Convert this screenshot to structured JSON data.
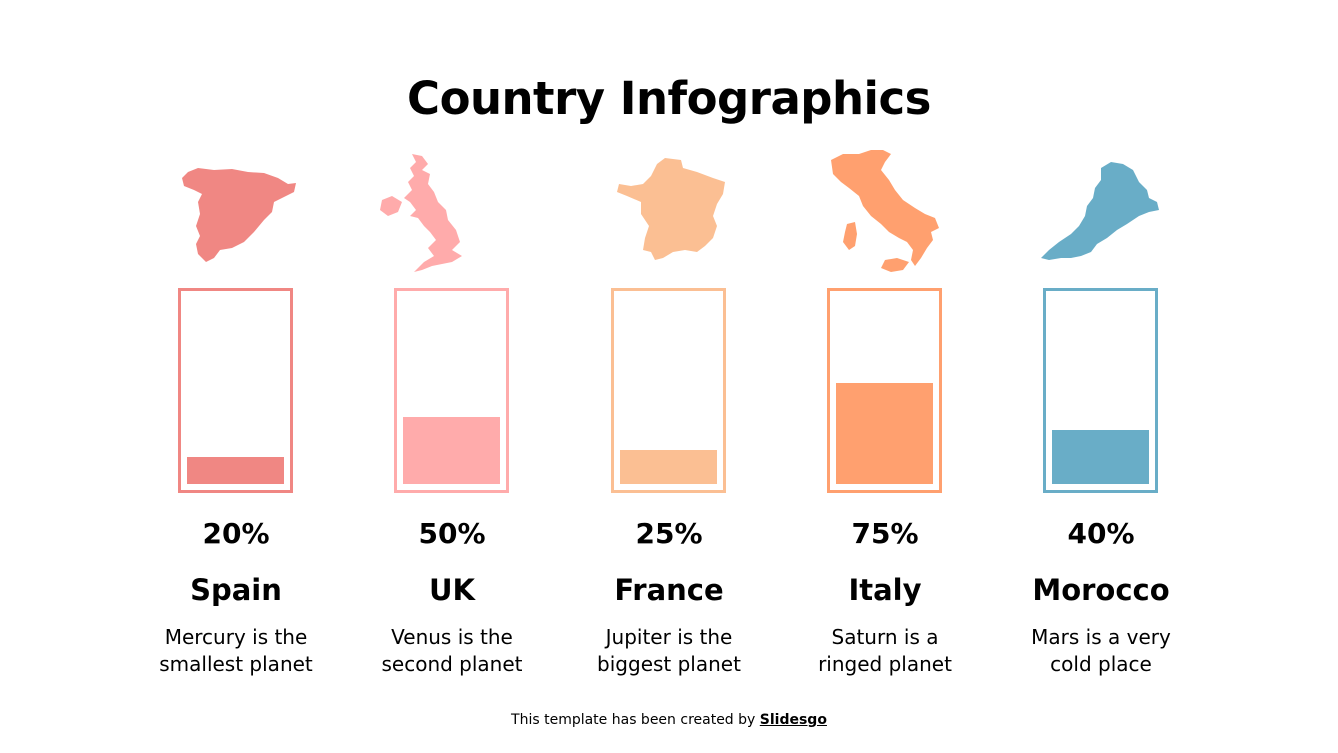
{
  "title": "Country Infographics",
  "footer": {
    "prefix": "This template has been created by ",
    "brand": "Slidesgo"
  },
  "colors": {
    "spain": "#f08783",
    "uk": "#ffabab",
    "france": "#fbbf93",
    "italy": "#ffa06f",
    "morocco": "#69adc7"
  },
  "chart_data": {
    "type": "bar",
    "title": "Country Infographics",
    "categories": [
      "Spain",
      "UK",
      "France",
      "Italy",
      "Morocco"
    ],
    "values": [
      20,
      50,
      25,
      75,
      40
    ],
    "value_labels": [
      "20%",
      "50%",
      "25%",
      "75%",
      "40%"
    ],
    "descriptions": [
      [
        "Mercury is the",
        "smallest planet"
      ],
      [
        "Venus is the",
        "second planet"
      ],
      [
        "Jupiter is the",
        "biggest planet"
      ],
      [
        "Saturn is a",
        "ringed planet"
      ],
      [
        "Mars is a very",
        "cold place"
      ]
    ],
    "ylim": [
      0,
      100
    ],
    "unit": "%"
  }
}
